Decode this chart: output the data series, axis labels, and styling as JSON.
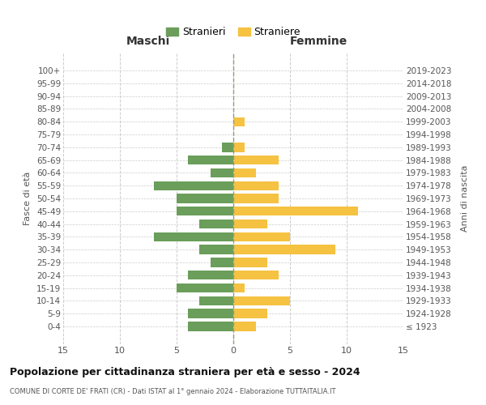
{
  "age_groups": [
    "100+",
    "95-99",
    "90-94",
    "85-89",
    "80-84",
    "75-79",
    "70-74",
    "65-69",
    "60-64",
    "55-59",
    "50-54",
    "45-49",
    "40-44",
    "35-39",
    "30-34",
    "25-29",
    "20-24",
    "15-19",
    "10-14",
    "5-9",
    "0-4"
  ],
  "birth_years": [
    "≤ 1923",
    "1924-1928",
    "1929-1933",
    "1934-1938",
    "1939-1943",
    "1944-1948",
    "1949-1953",
    "1954-1958",
    "1959-1963",
    "1964-1968",
    "1969-1973",
    "1974-1978",
    "1979-1983",
    "1984-1988",
    "1989-1993",
    "1994-1998",
    "1999-2003",
    "2004-2008",
    "2009-2013",
    "2014-2018",
    "2019-2023"
  ],
  "males": [
    0,
    0,
    0,
    0,
    0,
    0,
    1,
    4,
    2,
    7,
    5,
    5,
    3,
    7,
    3,
    2,
    4,
    5,
    3,
    4,
    4
  ],
  "females": [
    0,
    0,
    0,
    0,
    1,
    0,
    1,
    4,
    2,
    4,
    4,
    11,
    3,
    5,
    9,
    3,
    4,
    1,
    5,
    3,
    2
  ],
  "male_color": "#6a9e5a",
  "female_color": "#f5c242",
  "title": "Popolazione per cittadinanza straniera per età e sesso - 2024",
  "subtitle": "COMUNE DI CORTE DE' FRATI (CR) - Dati ISTAT al 1° gennaio 2024 - Elaborazione TUTTAITALIA.IT",
  "ylabel_left": "Fasce di età",
  "ylabel_right": "Anni di nascita",
  "xlabel_left": "Maschi",
  "xlabel_right": "Femmine",
  "legend_male": "Stranieri",
  "legend_female": "Straniere",
  "xlim": 15,
  "background_color": "#ffffff",
  "grid_color": "#cccccc"
}
